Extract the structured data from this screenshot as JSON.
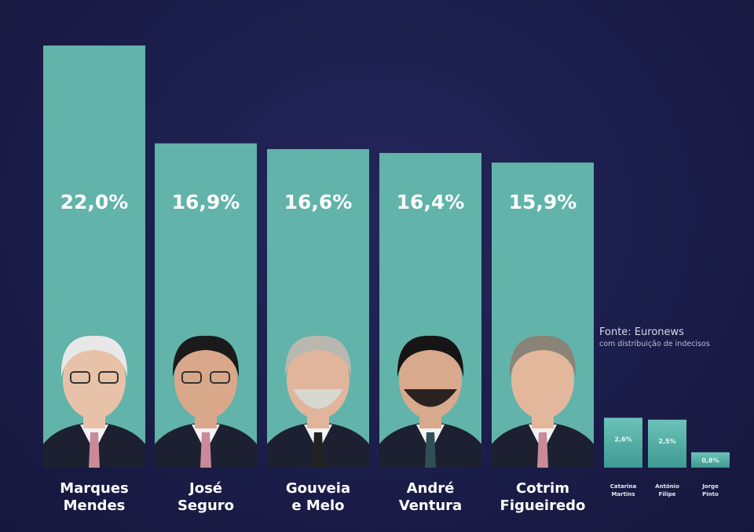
{
  "chart_data": {
    "type": "bar",
    "categories": [
      "Marques Mendes",
      "José Seguro",
      "Gouveia e Melo",
      "André Ventura",
      "Cotrim Figueiredo",
      "Catarina Martins",
      "António Filipe",
      "Jorge Pinto"
    ],
    "values": [
      22.0,
      16.9,
      16.6,
      16.4,
      15.9,
      2.6,
      2.5,
      0.8
    ],
    "value_labels": [
      "22,0%",
      "16,9%",
      "16,6%",
      "16,4%",
      "15,9%",
      "2,6%",
      "2,5%",
      "0,8%"
    ],
    "name_lines": [
      [
        "Marques",
        "Mendes"
      ],
      [
        "José",
        "Seguro"
      ],
      [
        "Gouveia",
        "e Melo"
      ],
      [
        "André",
        "Ventura"
      ],
      [
        "Cotrim",
        "Figueiredo"
      ],
      [
        "Catarina",
        "Martins"
      ],
      [
        "António",
        "Filipe"
      ],
      [
        "Jorge",
        "Pinto"
      ]
    ],
    "photo_icons": [
      "portrait-marques-mendes",
      "portrait-jose-seguro",
      "portrait-gouveia-e-melo",
      "portrait-andre-ventura",
      "portrait-cotrim-figueiredo"
    ],
    "ylim": [
      0,
      22
    ],
    "grid": false,
    "legend": "none",
    "title": "",
    "xlabel": "",
    "ylabel": ""
  },
  "source": {
    "line1": "Fonte: Euronews",
    "line2": "com distribuição de indecisos"
  },
  "colors": {
    "background": "#1b1d49",
    "bar": "#62b3aa",
    "text": "#ffffff"
  }
}
